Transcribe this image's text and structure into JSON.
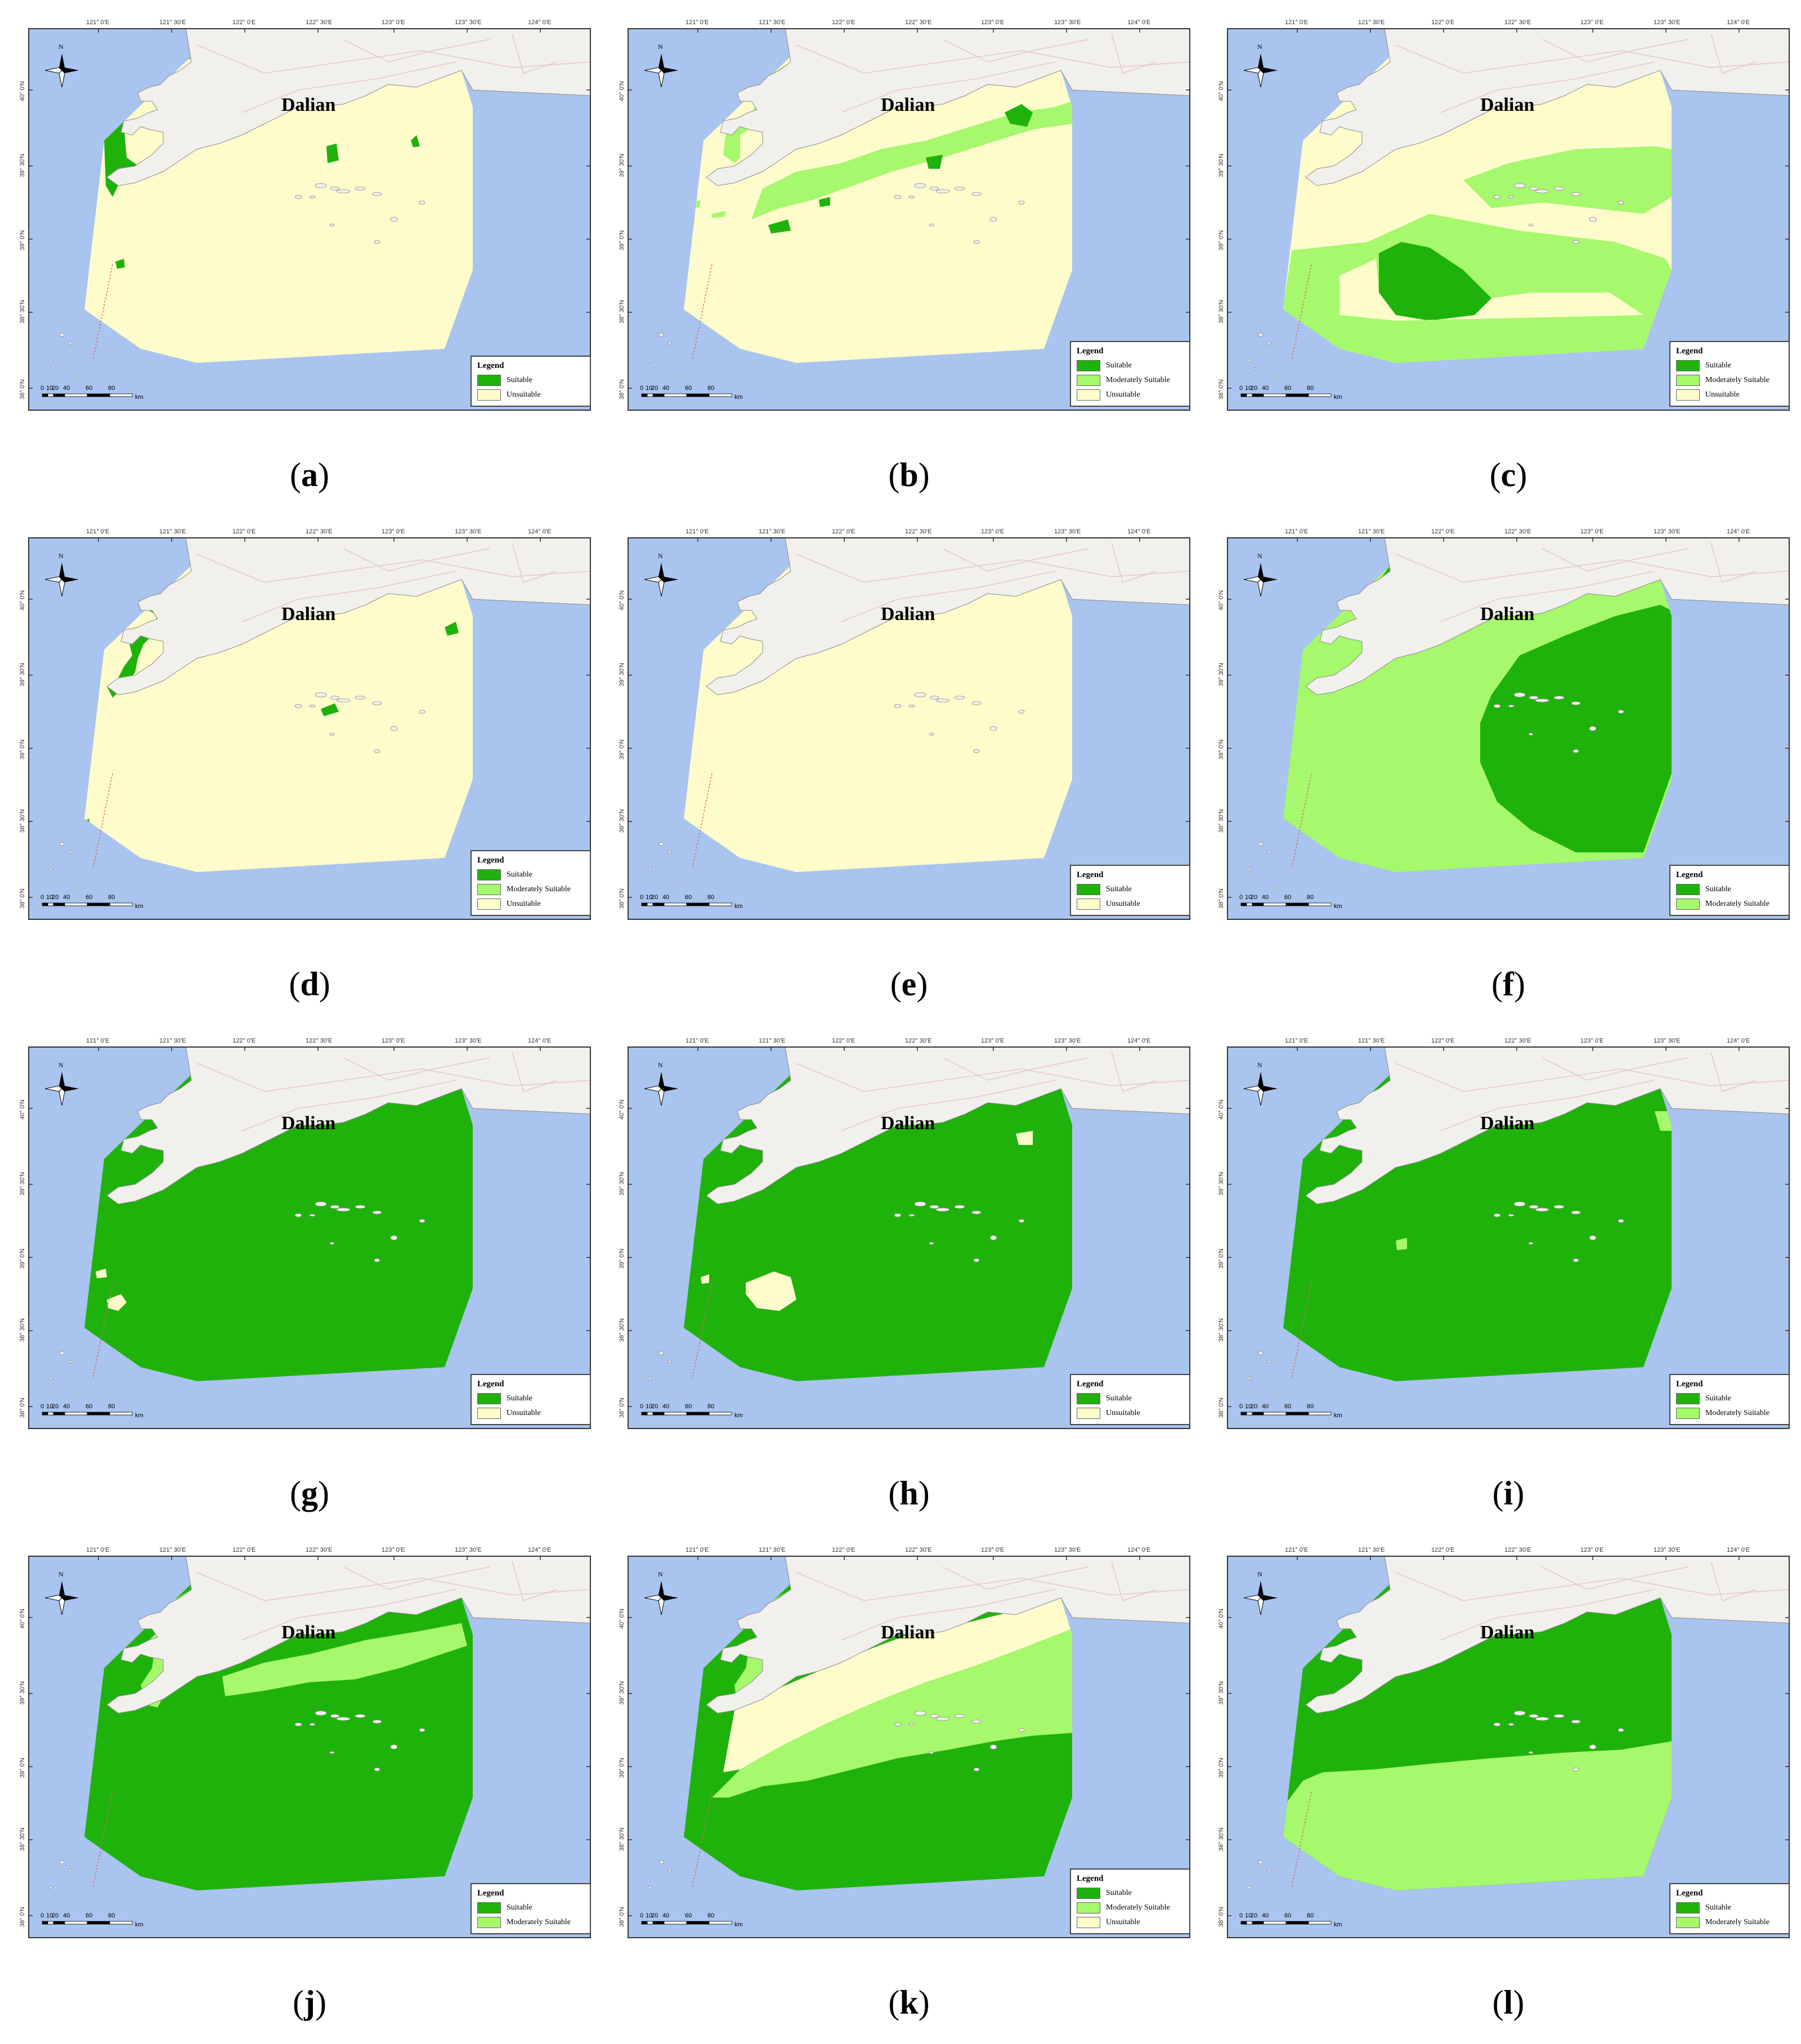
{
  "colors": {
    "sea": "#a9c4ee",
    "land": "#f1f0ec",
    "suitable": "#1fb20b",
    "moderately_suitable": "#a6f86c",
    "unsuitable": "#fffccc",
    "road": "#e4c8c8",
    "frame": "#333333"
  },
  "map_common": {
    "city": "Dalian",
    "north_symbol": "N",
    "lon_labels": [
      "121° 0'E",
      "121° 30'E",
      "122° 0'E",
      "122° 30'E",
      "123° 0'E",
      "123° 30'E",
      "124° 0'E"
    ],
    "lat_labels": [
      "40° 0'N",
      "39° 30'N",
      "39° 0'N",
      "38° 30'N",
      "38° 0'N"
    ],
    "scale_labels": [
      "0",
      "10",
      "20",
      "40",
      "60",
      "80"
    ],
    "scale_unit": "km",
    "legend_title": "Legend"
  },
  "panels": [
    {
      "caption": "a",
      "legend": [
        {
          "label": "Suitable",
          "class": "suitable"
        },
        {
          "label": "Unsuitable",
          "class": "unsuitable"
        }
      ],
      "base": "unsuitable",
      "overlay": "a"
    },
    {
      "caption": "b",
      "legend": [
        {
          "label": "Suitable",
          "class": "suitable"
        },
        {
          "label": "Moderately Suitable",
          "class": "moderately_suitable"
        },
        {
          "label": "Unsuitable",
          "class": "unsuitable"
        }
      ],
      "base": "unsuitable",
      "overlay": "b"
    },
    {
      "caption": "c",
      "legend": [
        {
          "label": "Suitable",
          "class": "suitable"
        },
        {
          "label": "Moderately Suitable",
          "class": "moderately_suitable"
        },
        {
          "label": "Unsuitable",
          "class": "unsuitable"
        }
      ],
      "base": "unsuitable",
      "overlay": "c"
    },
    {
      "caption": "d",
      "legend": [
        {
          "label": "Suitable",
          "class": "suitable"
        },
        {
          "label": "Moderately Suitable",
          "class": "moderately_suitable"
        },
        {
          "label": "Unsuitable",
          "class": "unsuitable"
        }
      ],
      "base": "unsuitable",
      "overlay": "d"
    },
    {
      "caption": "e",
      "legend": [
        {
          "label": "Suitable",
          "class": "suitable"
        },
        {
          "label": "Unsuitable",
          "class": "unsuitable"
        }
      ],
      "base": "unsuitable",
      "overlay": "e"
    },
    {
      "caption": "f",
      "legend": [
        {
          "label": "Suitable",
          "class": "suitable"
        },
        {
          "label": "Moderately Suitable",
          "class": "moderately_suitable"
        }
      ],
      "base": "moderately_suitable",
      "overlay": "f"
    },
    {
      "caption": "g",
      "legend": [
        {
          "label": "Suitable",
          "class": "suitable"
        },
        {
          "label": "Unsuitable",
          "class": "unsuitable"
        }
      ],
      "base": "suitable",
      "overlay": "g"
    },
    {
      "caption": "h",
      "legend": [
        {
          "label": "Suitable",
          "class": "suitable"
        },
        {
          "label": "Unsuitable",
          "class": "unsuitable"
        }
      ],
      "base": "suitable",
      "overlay": "h"
    },
    {
      "caption": "i",
      "legend": [
        {
          "label": "Suitable",
          "class": "suitable"
        },
        {
          "label": "Moderately Suitable",
          "class": "moderately_suitable"
        }
      ],
      "base": "suitable",
      "overlay": "i"
    },
    {
      "caption": "j",
      "legend": [
        {
          "label": "Suitable",
          "class": "suitable"
        },
        {
          "label": "Moderately Suitable",
          "class": "moderately_suitable"
        }
      ],
      "base": "suitable",
      "overlay": "j"
    },
    {
      "caption": "k",
      "legend": [
        {
          "label": "Suitable",
          "class": "suitable"
        },
        {
          "label": "Moderately Suitable",
          "class": "moderately_suitable"
        },
        {
          "label": "Unsuitable",
          "class": "unsuitable"
        }
      ],
      "base": "suitable",
      "overlay": "k"
    },
    {
      "caption": "l",
      "legend": [
        {
          "label": "Suitable",
          "class": "suitable"
        },
        {
          "label": "Moderately Suitable",
          "class": "moderately_suitable"
        }
      ],
      "base": "suitable",
      "overlay": "l"
    }
  ]
}
